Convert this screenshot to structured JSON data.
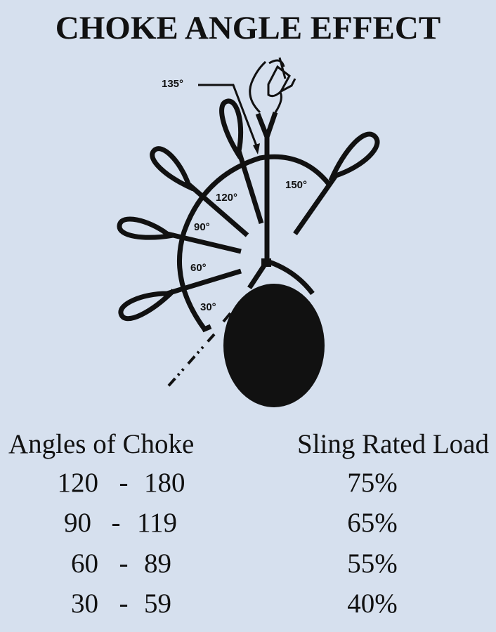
{
  "title": "CHOKE ANGLE EFFECT",
  "diagram": {
    "angle_labels": [
      "135°",
      "150°",
      "120°",
      "90°",
      "60°",
      "30°"
    ]
  },
  "table": {
    "headers": [
      "Angles of Choke",
      "Sling Rated Load"
    ],
    "rows": [
      {
        "from": "120",
        "sep": "-",
        "to": "180",
        "load": "75%"
      },
      {
        "from": "90",
        "sep": "-",
        "to": "119",
        "load": "65%"
      },
      {
        "from": "60",
        "sep": "-",
        "to": "89",
        "load": "55%"
      },
      {
        "from": "30",
        "sep": "-",
        "to": "59",
        "load": "40%"
      }
    ]
  },
  "colors": {
    "background": "#d6e0ee",
    "ink": "#111111"
  }
}
